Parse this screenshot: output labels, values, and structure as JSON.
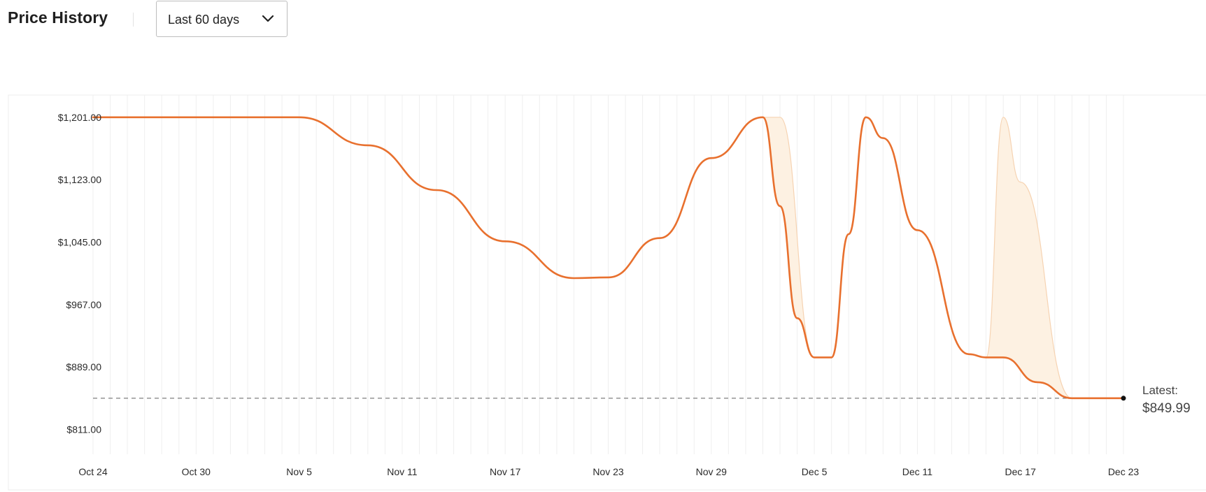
{
  "header": {
    "title": "Price History",
    "range_select": {
      "selected": "Last 60 days"
    }
  },
  "colors": {
    "line": "#e8702e",
    "band_fill": "#fdf1e2",
    "band_stroke": "#f6d3b2",
    "grid": "#efefef",
    "reference": "#707070",
    "marker": "#111111"
  },
  "chart_data": {
    "type": "line",
    "title": "Price History",
    "xlabel": "",
    "ylabel": "",
    "x_ticks": [
      "Oct 24",
      "Oct 30",
      "Nov 5",
      "Nov 11",
      "Nov 17",
      "Nov 23",
      "Nov 29",
      "Dec 5",
      "Dec 11",
      "Dec 17",
      "Dec 23"
    ],
    "y_ticks": [
      "$1,201.00",
      "$1,123.00",
      "$1,045.00",
      "$967.00",
      "$889.00",
      "$811.00"
    ],
    "y_tick_values": [
      1201,
      1123,
      1045,
      967,
      889,
      811
    ],
    "ylim": [
      780,
      1234
    ],
    "x_start": "Oct 24",
    "x_end": "Dec 23",
    "grid": true,
    "series": [
      {
        "points": [
          [
            "Oct 24",
            1201
          ],
          [
            "Nov 5",
            1201
          ],
          [
            "Nov 9",
            1166
          ],
          [
            "Nov 13",
            1110
          ],
          [
            "Nov 17",
            1046
          ],
          [
            "Nov 21",
            1000
          ],
          [
            "Nov 23",
            1001
          ],
          [
            "Nov 26",
            1050
          ],
          [
            "Nov 29",
            1150
          ],
          [
            "Dec 2",
            1201
          ],
          [
            "Dec 3",
            1090
          ],
          [
            "Dec 4",
            950
          ],
          [
            "Dec 5",
            901
          ],
          [
            "Dec 6",
            901
          ],
          [
            "Dec 7",
            1055
          ],
          [
            "Dec 8",
            1201
          ],
          [
            "Dec 9",
            1175
          ],
          [
            "Dec 11",
            1060
          ],
          [
            "Dec 14",
            905
          ],
          [
            "Dec 15",
            901
          ],
          [
            "Dec 16",
            901
          ],
          [
            "Dec 18",
            870
          ],
          [
            "Dec 20",
            849.99
          ],
          [
            "Dec 23",
            849.99
          ]
        ]
      }
    ],
    "range_bands": [
      {
        "upper": [
          [
            "Dec 2",
            1201
          ],
          [
            "Dec 3",
            1201
          ],
          [
            "Dec 5",
            901
          ],
          [
            "Dec 6",
            901
          ]
        ],
        "lower": [
          [
            "Dec 2",
            1201
          ],
          [
            "Dec 3",
            1090
          ],
          [
            "Dec 4",
            950
          ],
          [
            "Dec 5",
            901
          ],
          [
            "Dec 6",
            901
          ]
        ]
      },
      {
        "upper": [
          [
            "Dec 15",
            901
          ],
          [
            "Dec 16",
            1201
          ],
          [
            "Dec 17",
            1120
          ],
          [
            "Dec 20",
            849.99
          ]
        ],
        "lower": [
          [
            "Dec 15",
            901
          ],
          [
            "Dec 16",
            901
          ],
          [
            "Dec 18",
            870
          ],
          [
            "Dec 20",
            849.99
          ]
        ]
      }
    ],
    "reference_line": {
      "value": 849.99,
      "style": "dashed"
    },
    "latest": {
      "label": "Latest:",
      "value": "$849.99",
      "date": "Dec 23"
    }
  }
}
